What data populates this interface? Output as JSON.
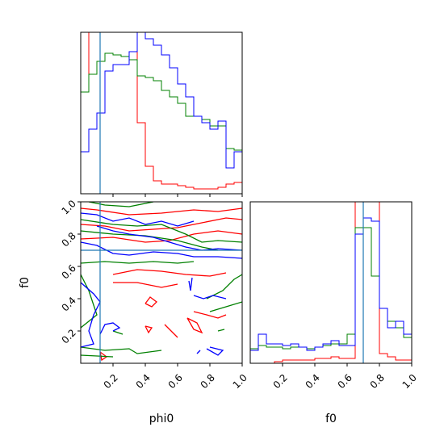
{
  "colors": {
    "red": "#ff0000",
    "green": "#008000",
    "blue": "#0000ff",
    "truth": "#1f77b4",
    "axes": "#000000"
  },
  "chart_data": {
    "type": "corner",
    "parameters": [
      "phi0",
      "f0"
    ],
    "truth": {
      "phi0": 0.12,
      "f0": 0.7
    },
    "axis_ranges": {
      "phi0": [
        0,
        1
      ],
      "f0": [
        0,
        1
      ]
    },
    "tick_labels": {
      "phi0": [
        "0.2",
        "0.4",
        "0.6",
        "0.8",
        "1.0"
      ],
      "f0": [
        "0.2",
        "0.4",
        "0.6",
        "0.8",
        "1.0"
      ]
    },
    "axis_labels": {
      "x_left": "phi0",
      "x_right": "f0",
      "y_left": "f0"
    },
    "hist_phi0": {
      "bins": [
        0,
        0.05,
        0.1,
        0.15,
        0.2,
        0.25,
        0.3,
        0.35,
        0.4,
        0.45,
        0.5,
        0.55,
        0.6,
        0.65,
        0.7,
        0.75,
        0.8,
        0.85,
        0.9,
        0.95,
        1.0
      ],
      "ylim": [
        0,
        1.0
      ],
      "series": [
        {
          "color": "red",
          "values": [
            0.63,
            1.0,
            1.0,
            1.0,
            1.0,
            1.0,
            1.0,
            0.44,
            0.17,
            0.08,
            0.06,
            0.06,
            0.05,
            0.04,
            0.03,
            0.03,
            0.03,
            0.04,
            0.06,
            0.07
          ]
        },
        {
          "color": "green",
          "values": [
            0.63,
            0.74,
            0.82,
            0.87,
            0.86,
            0.85,
            0.83,
            0.73,
            0.72,
            0.7,
            0.64,
            0.6,
            0.56,
            0.48,
            0.48,
            0.46,
            0.42,
            0.42,
            0.28,
            0.27
          ]
        },
        {
          "color": "blue",
          "values": [
            0.26,
            0.4,
            0.5,
            0.76,
            0.8,
            0.8,
            0.88,
            1.0,
            0.96,
            0.92,
            0.86,
            0.78,
            0.68,
            0.6,
            0.48,
            0.44,
            0.4,
            0.45,
            0.16,
            0.26
          ]
        }
      ]
    },
    "hist_f0": {
      "bins": [
        0,
        0.05,
        0.1,
        0.15,
        0.2,
        0.25,
        0.3,
        0.35,
        0.4,
        0.45,
        0.5,
        0.55,
        0.6,
        0.65,
        0.7,
        0.75,
        0.8,
        0.85,
        0.9,
        0.95,
        1.0
      ],
      "ylim": [
        0,
        1.0
      ],
      "series": [
        {
          "color": "red",
          "values": [
            0,
            0,
            0,
            0.01,
            0.02,
            0.02,
            0.02,
            0.02,
            0.03,
            0.03,
            0.04,
            0.03,
            0.03,
            1.0,
            1.0,
            1.0,
            0.06,
            0.04,
            0.02,
            0.02
          ]
        },
        {
          "color": "green",
          "values": [
            0.09,
            0.11,
            0.1,
            0.1,
            0.09,
            0.1,
            0.1,
            0.09,
            0.1,
            0.11,
            0.12,
            0.12,
            0.18,
            0.84,
            0.84,
            0.54,
            0.34,
            0.26,
            0.22,
            0.16
          ]
        },
        {
          "color": "blue",
          "values": [
            0.08,
            0.18,
            0.12,
            0.12,
            0.11,
            0.12,
            0.1,
            0.08,
            0.1,
            0.12,
            0.14,
            0.11,
            0.11,
            0.8,
            0.9,
            0.88,
            0.34,
            0.22,
            0.26,
            0.18
          ]
        }
      ]
    },
    "contours_phi0_f0": [
      {
        "color": "red",
        "lines": [
          [
            [
              0.0,
              0.96
            ],
            [
              0.1,
              0.95
            ],
            [
              0.3,
              0.92
            ],
            [
              0.5,
              0.93
            ],
            [
              0.7,
              0.95
            ],
            [
              0.85,
              0.94
            ],
            [
              1.0,
              0.96
            ]
          ],
          [
            [
              0.0,
              0.86
            ],
            [
              0.15,
              0.85
            ],
            [
              0.3,
              0.82
            ],
            [
              0.45,
              0.83
            ],
            [
              0.6,
              0.84
            ],
            [
              0.75,
              0.87
            ],
            [
              0.9,
              0.9
            ],
            [
              1.0,
              0.89
            ]
          ],
          [
            [
              0.0,
              0.77
            ],
            [
              0.2,
              0.78
            ],
            [
              0.4,
              0.75
            ],
            [
              0.55,
              0.76
            ],
            [
              0.7,
              0.8
            ],
            [
              0.85,
              0.82
            ],
            [
              1.0,
              0.8
            ]
          ],
          [
            [
              0.2,
              0.55
            ],
            [
              0.35,
              0.58
            ],
            [
              0.5,
              0.57
            ],
            [
              0.65,
              0.55
            ],
            [
              0.8,
              0.54
            ],
            [
              0.9,
              0.56
            ]
          ],
          [
            [
              0.2,
              0.5
            ],
            [
              0.35,
              0.5
            ],
            [
              0.5,
              0.47
            ],
            [
              0.6,
              0.49
            ]
          ],
          [
            [
              0.4,
              0.37
            ],
            [
              0.43,
              0.41
            ],
            [
              0.47,
              0.38
            ],
            [
              0.44,
              0.35
            ],
            [
              0.4,
              0.37
            ]
          ],
          [
            [
              0.52,
              0.24
            ],
            [
              0.56,
              0.2
            ],
            [
              0.6,
              0.16
            ],
            [
              0.57,
              0.19
            ],
            [
              0.52,
              0.24
            ]
          ],
          [
            [
              0.4,
              0.23
            ],
            [
              0.44,
              0.22
            ],
            [
              0.42,
              0.19
            ],
            [
              0.4,
              0.23
            ]
          ],
          [
            [
              0.66,
              0.28
            ],
            [
              0.72,
              0.25
            ],
            [
              0.75,
              0.19
            ],
            [
              0.7,
              0.21
            ],
            [
              0.66,
              0.28
            ]
          ],
          [
            [
              0.7,
              0.32
            ],
            [
              0.78,
              0.3
            ],
            [
              0.85,
              0.28
            ],
            [
              0.9,
              0.3
            ]
          ],
          [
            [
              0.12,
              0.07
            ],
            [
              0.16,
              0.04
            ],
            [
              0.13,
              0.02
            ],
            [
              0.12,
              0.07
            ]
          ]
        ]
      },
      {
        "color": "green",
        "lines": [
          [
            [
              0.05,
              1.0
            ],
            [
              0.15,
              0.98
            ],
            [
              0.3,
              0.97
            ],
            [
              0.45,
              1.0
            ]
          ],
          [
            [
              0.0,
              0.89
            ],
            [
              0.2,
              0.86
            ],
            [
              0.35,
              0.85
            ],
            [
              0.5,
              0.86
            ],
            [
              0.65,
              0.8
            ],
            [
              0.75,
              0.75
            ],
            [
              0.85,
              0.76
            ],
            [
              1.0,
              0.75
            ]
          ],
          [
            [
              0.0,
              0.82
            ],
            [
              0.2,
              0.8
            ],
            [
              0.4,
              0.79
            ],
            [
              0.6,
              0.76
            ],
            [
              0.75,
              0.72
            ],
            [
              0.85,
              0.7
            ]
          ],
          [
            [
              0.0,
              0.62
            ],
            [
              0.15,
              0.63
            ],
            [
              0.3,
              0.62
            ],
            [
              0.45,
              0.63
            ],
            [
              0.6,
              0.62
            ],
            [
              0.7,
              0.63
            ]
          ],
          [
            [
              0.0,
              0.55
            ],
            [
              0.05,
              0.45
            ],
            [
              0.1,
              0.3
            ],
            [
              0.0,
              0.22
            ]
          ],
          [
            [
              0.78,
              0.4
            ],
            [
              0.88,
              0.45
            ],
            [
              0.95,
              0.52
            ],
            [
              1.0,
              0.55
            ]
          ],
          [
            [
              0.8,
              0.32
            ],
            [
              0.9,
              0.35
            ],
            [
              1.0,
              0.38
            ]
          ],
          [
            [
              0.0,
              0.1
            ],
            [
              0.15,
              0.08
            ],
            [
              0.3,
              0.09
            ],
            [
              0.35,
              0.06
            ],
            [
              0.5,
              0.08
            ]
          ],
          [
            [
              0.0,
              0.05
            ],
            [
              0.2,
              0.04
            ]
          ],
          [
            [
              0.2,
              0.2
            ],
            [
              0.26,
              0.18
            ]
          ],
          [
            [
              0.85,
              0.2
            ],
            [
              0.89,
              0.21
            ]
          ]
        ]
      },
      {
        "color": "blue",
        "lines": [
          [
            [
              0.0,
              0.93
            ],
            [
              0.1,
              0.92
            ],
            [
              0.2,
              0.88
            ],
            [
              0.3,
              0.9
            ],
            [
              0.4,
              0.86
            ],
            [
              0.5,
              0.88
            ],
            [
              0.6,
              0.85
            ],
            [
              0.7,
              0.88
            ]
          ],
          [
            [
              0.1,
              0.85
            ],
            [
              0.2,
              0.82
            ],
            [
              0.3,
              0.8
            ],
            [
              0.45,
              0.78
            ],
            [
              0.55,
              0.75
            ],
            [
              0.65,
              0.72
            ],
            [
              0.75,
              0.7
            ],
            [
              0.85,
              0.71
            ],
            [
              1.0,
              0.7
            ]
          ],
          [
            [
              0.0,
              0.75
            ],
            [
              0.1,
              0.73
            ],
            [
              0.2,
              0.68
            ],
            [
              0.3,
              0.67
            ],
            [
              0.45,
              0.69
            ],
            [
              0.6,
              0.68
            ],
            [
              0.7,
              0.66
            ],
            [
              0.85,
              0.66
            ],
            [
              1.0,
              0.65
            ]
          ],
          [
            [
              0.0,
              0.5
            ],
            [
              0.08,
              0.43
            ],
            [
              0.12,
              0.38
            ],
            [
              0.08,
              0.3
            ],
            [
              0.05,
              0.2
            ],
            [
              0.08,
              0.12
            ],
            [
              0.0,
              0.1
            ]
          ],
          [
            [
              0.12,
              0.18
            ],
            [
              0.15,
              0.24
            ],
            [
              0.2,
              0.25
            ],
            [
              0.24,
              0.22
            ],
            [
              0.2,
              0.2
            ]
          ],
          [
            [
              0.67,
              0.51
            ],
            [
              0.68,
              0.45
            ],
            [
              0.69,
              0.53
            ]
          ],
          [
            [
              0.78,
              0.09
            ],
            [
              0.85,
              0.05
            ],
            [
              0.88,
              0.08
            ],
            [
              0.8,
              0.1
            ]
          ],
          [
            [
              0.7,
              0.42
            ],
            [
              0.76,
              0.4
            ],
            [
              0.82,
              0.42
            ],
            [
              0.9,
              0.4
            ]
          ],
          [
            [
              0.72,
              0.06
            ],
            [
              0.74,
              0.08
            ]
          ]
        ]
      }
    ]
  }
}
